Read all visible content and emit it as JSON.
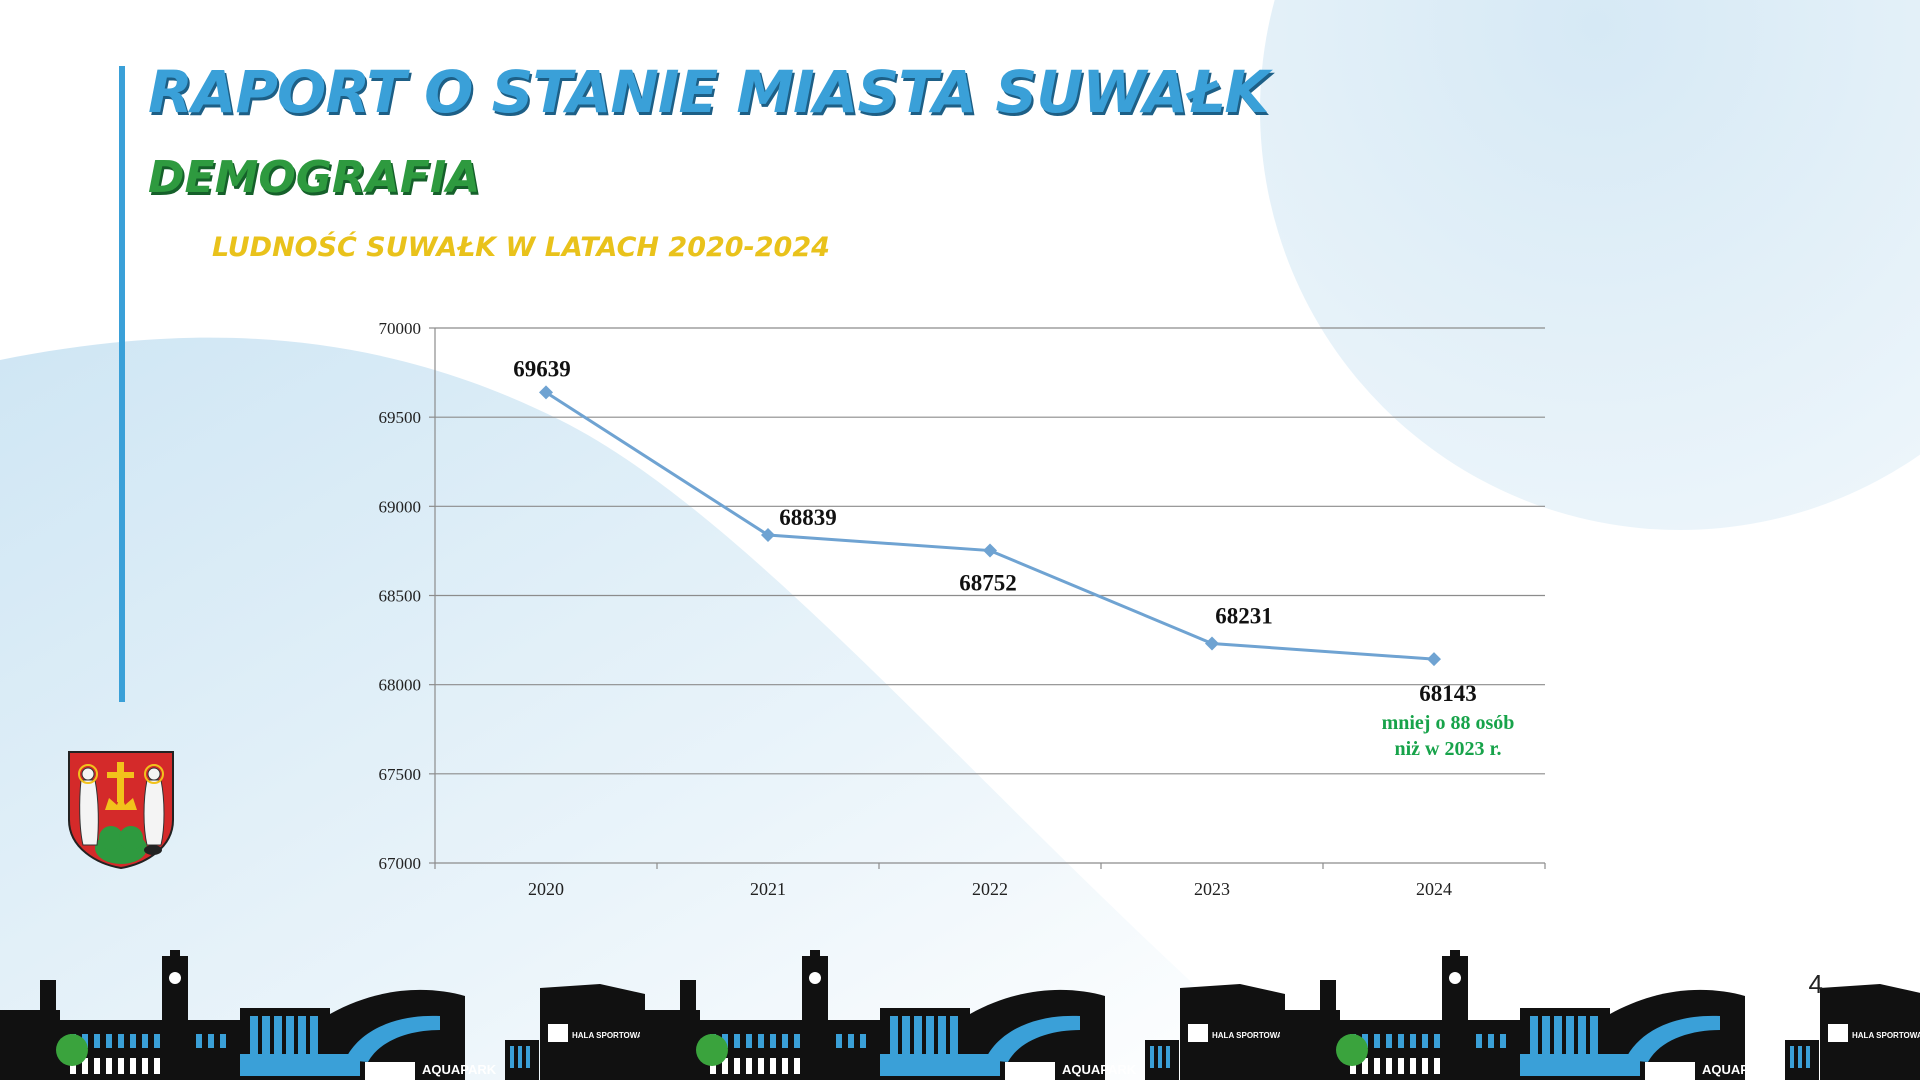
{
  "slide": {
    "title": "RAPORT O STANIE MIASTA SUWAŁK",
    "subtitle": "DEMOGRAFIA",
    "chart_heading": "LUDNOŚĆ SUWAŁK W LATACH 2020-2024",
    "page_number": "4",
    "skyline_labels": [
      "AQUAPARK",
      "HALA SPORTOWA"
    ]
  },
  "colors": {
    "title": "#3aa0d8",
    "subtitle": "#2e9a3f",
    "chart_heading": "#e9c21b",
    "line": "#6fa3d2",
    "annotation": "#17a34a"
  },
  "chart_data": {
    "type": "line",
    "categories": [
      "2020",
      "2021",
      "2022",
      "2023",
      "2024"
    ],
    "values": [
      69639,
      68839,
      68752,
      68231,
      68143
    ],
    "data_labels": [
      "69639",
      "68839",
      "68752",
      "68231",
      "68143"
    ],
    "ylim": [
      67000,
      70000
    ],
    "yticks": [
      "70000",
      "69500",
      "69000",
      "68500",
      "68000",
      "67500",
      "67000"
    ],
    "grid": true,
    "annotation": {
      "category": "2024",
      "lines": [
        "mniej o 88 osób",
        "niż w 2023 r."
      ]
    }
  }
}
